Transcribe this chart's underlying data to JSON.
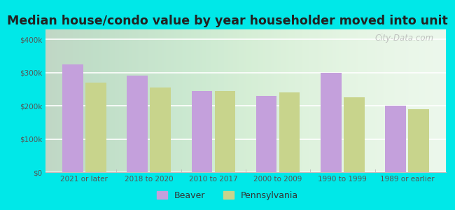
{
  "categories": [
    "2021 or later",
    "2018 to 2020",
    "2010 to 2017",
    "2000 to 2009",
    "1990 to 1999",
    "1989 or earlier"
  ],
  "beaver_values": [
    325000,
    290000,
    245000,
    230000,
    300000,
    200000
  ],
  "pennsylvania_values": [
    270000,
    255000,
    245000,
    240000,
    225000,
    190000
  ],
  "beaver_color": "#c4a0dc",
  "pennsylvania_color": "#c8d48c",
  "title": "Median house/condo value by year householder moved into unit",
  "title_fontsize": 12.5,
  "ylabel_ticks": [
    0,
    100000,
    200000,
    300000,
    400000
  ],
  "ylabel_labels": [
    "$0",
    "$100k",
    "$200k",
    "$300k",
    "$400k"
  ],
  "ylim": [
    0,
    430000
  ],
  "plot_bg_top": "#f5fff5",
  "plot_bg_bottom": "#e0f0e0",
  "outer_background": "#00e8e8",
  "legend_labels": [
    "Beaver",
    "Pennsylvania"
  ],
  "bar_width": 0.32,
  "watermark_text": "City-Data.com"
}
